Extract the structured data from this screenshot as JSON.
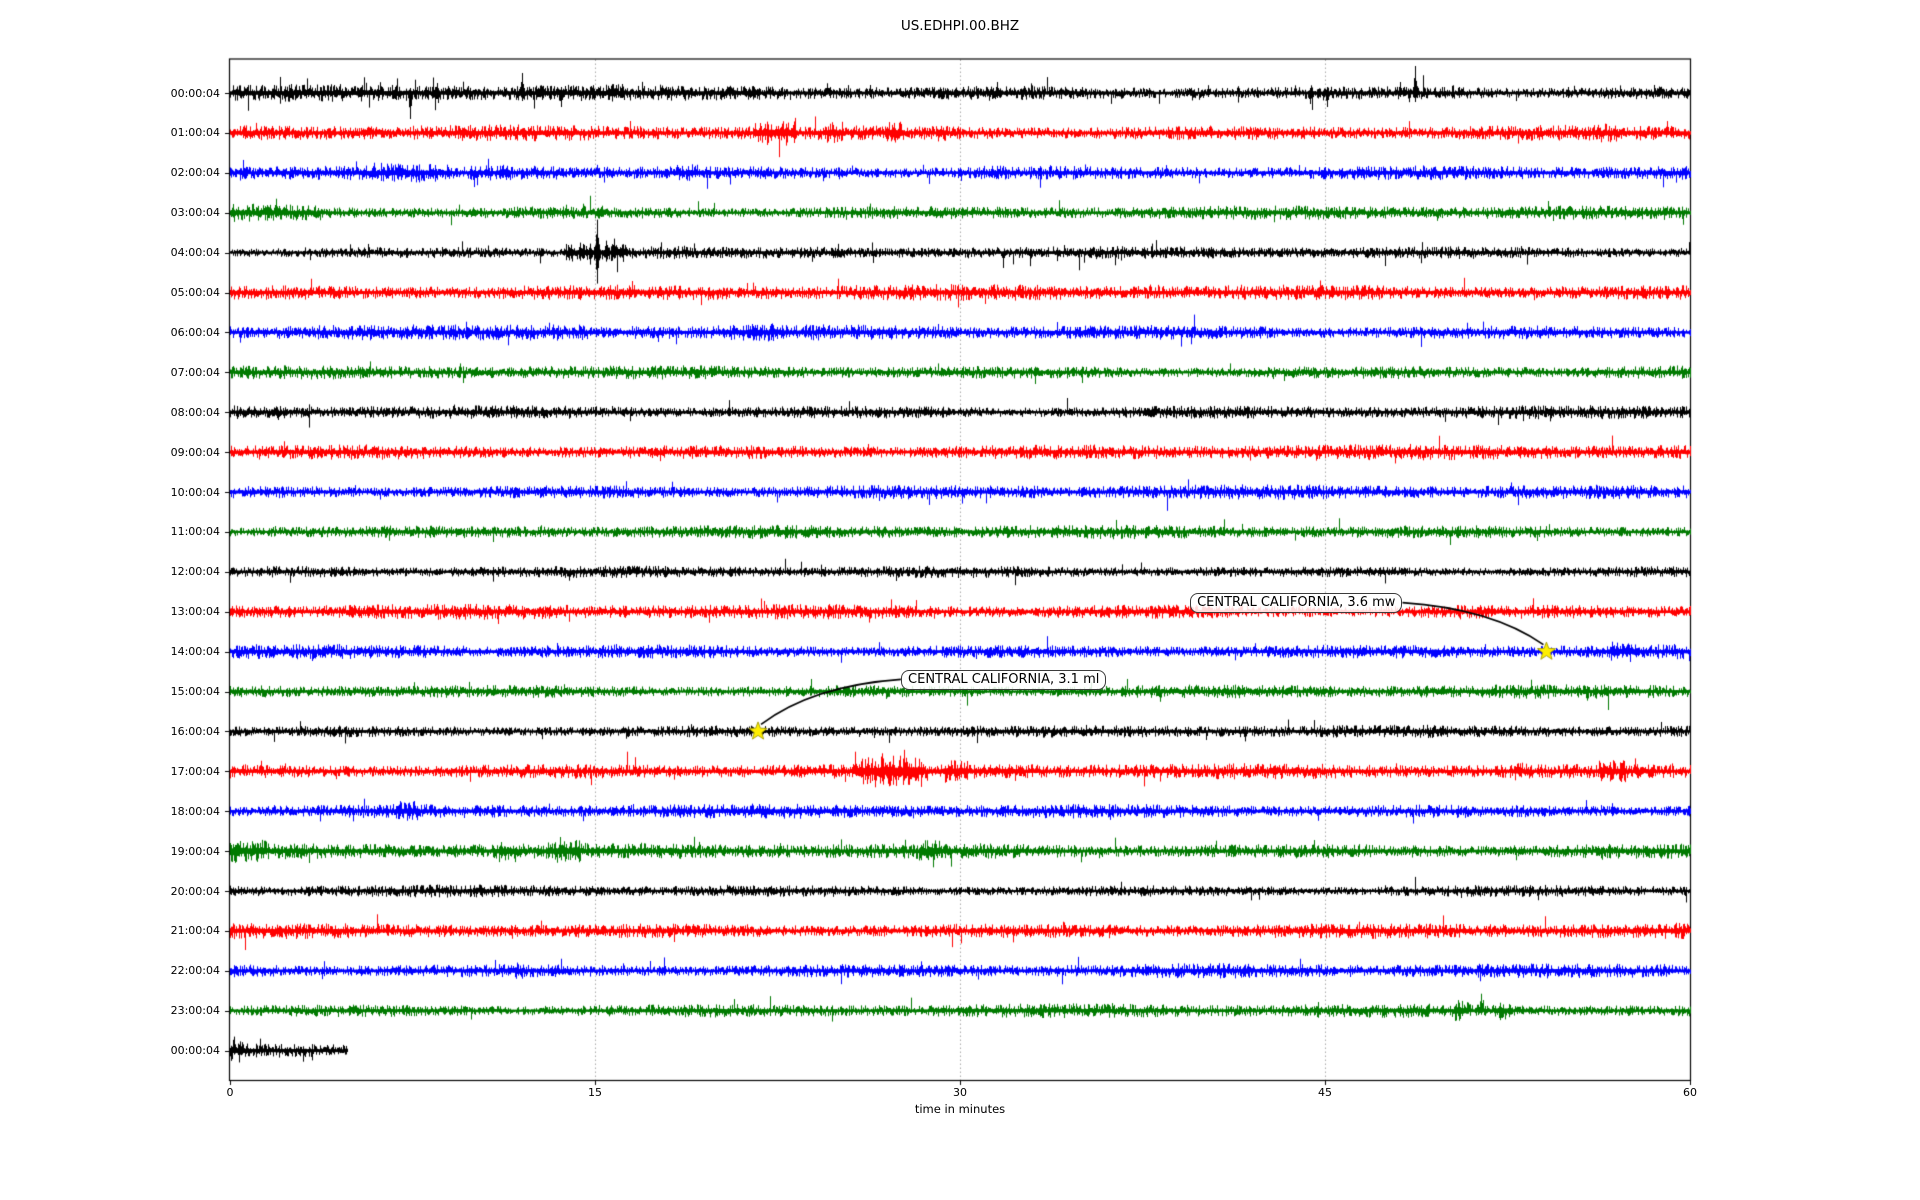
{
  "figure": {
    "title": "US.EDHPI.00.BHZ",
    "xlabel": "time in minutes"
  },
  "chart_data": {
    "type": "line",
    "subtype": "seismogram-dayplot",
    "title": "US.EDHPI.00.BHZ",
    "xlabel": "time in minutes",
    "xlim": [
      0,
      60
    ],
    "x_ticks": [
      0,
      15,
      30,
      45,
      60
    ],
    "grid": "vertical dotted gridlines at 15, 30, 45",
    "grid_color": "#aaaaaa",
    "colors": {
      "black": "#000000",
      "red": "#ff0000",
      "blue": "#0000ff",
      "green": "#007a00",
      "star_fill": "#ffee00",
      "star_edge": "#a09a00",
      "connector": "#000000"
    },
    "rows": [
      {
        "label": "00:00:04",
        "color": "black",
        "base": 4.0,
        "spiky": 0.035,
        "length_min": 60,
        "bands": [
          [
            0,
            16,
            1.2
          ]
        ],
        "spikes": [
          [
            1.8,
            8,
            4
          ],
          [
            2.5,
            9,
            5
          ],
          [
            5.4,
            6,
            7
          ],
          [
            6.1,
            7,
            5
          ],
          [
            6.8,
            6,
            6
          ],
          [
            7.4,
            5,
            26
          ],
          [
            8.5,
            10,
            6
          ],
          [
            9.3,
            6,
            5
          ],
          [
            12.0,
            20,
            8
          ],
          [
            13.6,
            6,
            14
          ],
          [
            16.1,
            9,
            5
          ],
          [
            18.0,
            6,
            5
          ],
          [
            21.5,
            7,
            5
          ],
          [
            26.3,
            8,
            4
          ],
          [
            31.5,
            11,
            5
          ],
          [
            35.0,
            6,
            4
          ],
          [
            40.2,
            7,
            4
          ],
          [
            44.4,
            5,
            11
          ],
          [
            45.1,
            6,
            14
          ],
          [
            48.1,
            11,
            4
          ],
          [
            48.7,
            27,
            9
          ],
          [
            50.5,
            6,
            4
          ],
          [
            55.0,
            6,
            5
          ]
        ]
      },
      {
        "label": "01:00:04",
        "color": "red",
        "base": 4.4,
        "spiky": 0.01,
        "length_min": 60,
        "bands": [
          [
            21.5,
            23.2,
            1.8
          ],
          [
            24.5,
            25.2,
            1.5
          ],
          [
            26.9,
            27.6,
            1.6
          ],
          [
            29.0,
            29.5,
            1.4
          ],
          [
            56.0,
            57.0,
            1.25
          ]
        ],
        "spikes": [
          [
            22.0,
            9,
            5
          ],
          [
            22.5,
            7,
            6
          ],
          [
            24.8,
            8,
            4
          ],
          [
            27.3,
            10,
            5
          ],
          [
            29.2,
            7,
            4
          ]
        ]
      },
      {
        "label": "02:00:04",
        "color": "blue",
        "base": 4.0,
        "spiky": 0.015,
        "length_min": 60,
        "bands": [
          [
            6.2,
            9.0,
            1.35
          ],
          [
            9.8,
            13.6,
            1.3
          ],
          [
            18.2,
            19.3,
            1.3
          ],
          [
            30.8,
            32.0,
            1.2
          ]
        ],
        "spikes": [
          [
            7.5,
            8,
            6
          ],
          [
            9.9,
            7,
            7
          ],
          [
            11.2,
            8,
            5
          ],
          [
            15.5,
            6,
            5
          ],
          [
            31.3,
            7,
            5
          ]
        ]
      },
      {
        "label": "03:00:04",
        "color": "green",
        "base": 3.8,
        "spiky": 0.015,
        "length_min": 60,
        "bands": [
          [
            0,
            3.5,
            1.35
          ]
        ],
        "spikes": [
          [
            1.9,
            14,
            5
          ],
          [
            2.3,
            8,
            5
          ],
          [
            3.2,
            7,
            4
          ],
          [
            13.8,
            8,
            5
          ],
          [
            14.5,
            9,
            5
          ],
          [
            15.3,
            7,
            4
          ],
          [
            27.8,
            6,
            4
          ]
        ]
      },
      {
        "label": "04:00:04",
        "color": "black",
        "base": 3.4,
        "spiky": 0.02,
        "length_min": 60,
        "bands": [
          [
            13.8,
            16.3,
            2.1
          ],
          [
            16.3,
            19.0,
            1.3
          ]
        ],
        "spikes": [
          [
            5.5,
            5,
            4
          ],
          [
            14.0,
            8,
            6
          ],
          [
            14.4,
            10,
            8
          ],
          [
            14.8,
            9,
            12
          ],
          [
            15.1,
            33,
            31
          ],
          [
            15.45,
            12,
            9
          ],
          [
            15.8,
            14,
            6
          ],
          [
            16.1,
            8,
            5
          ],
          [
            25.0,
            5,
            4
          ],
          [
            34.0,
            5,
            4
          ]
        ]
      },
      {
        "label": "05:00:04",
        "color": "red",
        "base": 4.4,
        "spiky": 0.008,
        "length_min": 60,
        "bands": [],
        "spikes": [
          [
            28.5,
            6,
            4
          ]
        ]
      },
      {
        "label": "06:00:04",
        "color": "blue",
        "base": 4.2,
        "spiky": 0.01,
        "length_min": 60,
        "bands": [
          [
            2,
            6,
            1.2
          ],
          [
            13,
            15,
            1.15
          ],
          [
            20,
            22.5,
            1.15
          ]
        ],
        "spikes": []
      },
      {
        "label": "07:00:04",
        "color": "green",
        "base": 3.8,
        "spiky": 0.008,
        "length_min": 60,
        "bands": [],
        "spikes": []
      },
      {
        "label": "08:00:04",
        "color": "black",
        "base": 3.8,
        "spiky": 0.012,
        "length_min": 60,
        "bands": [],
        "spikes": []
      },
      {
        "label": "09:00:04",
        "color": "red",
        "base": 4.3,
        "spiky": 0.008,
        "length_min": 60,
        "bands": [],
        "spikes": [
          [
            43.9,
            7,
            4
          ],
          [
            51.7,
            4,
            6
          ]
        ]
      },
      {
        "label": "10:00:04",
        "color": "blue",
        "base": 4.0,
        "spiky": 0.008,
        "length_min": 60,
        "bands": [],
        "spikes": []
      },
      {
        "label": "11:00:04",
        "color": "green",
        "base": 3.8,
        "spiky": 0.008,
        "length_min": 60,
        "bands": [],
        "spikes": []
      },
      {
        "label": "12:00:04",
        "color": "black",
        "base": 3.3,
        "spiky": 0.008,
        "length_min": 60,
        "bands": [],
        "spikes": []
      },
      {
        "label": "13:00:04",
        "color": "red",
        "base": 4.2,
        "spiky": 0.008,
        "length_min": 60,
        "bands": [],
        "spikes": []
      },
      {
        "label": "14:00:04",
        "color": "blue",
        "base": 4.0,
        "spiky": 0.008,
        "length_min": 60,
        "bands": [
          [
            56.6,
            57.9,
            1.5
          ]
        ],
        "spikes": [
          [
            57.0,
            9,
            7
          ],
          [
            57.4,
            7,
            5
          ]
        ]
      },
      {
        "label": "15:00:04",
        "color": "green",
        "base": 3.8,
        "spiky": 0.008,
        "length_min": 60,
        "bands": [],
        "spikes": []
      },
      {
        "label": "16:00:04",
        "color": "black",
        "base": 3.5,
        "spiky": 0.01,
        "length_min": 60,
        "bands": [],
        "spikes": [
          [
            41.7,
            4,
            10
          ]
        ]
      },
      {
        "label": "17:00:04",
        "color": "red",
        "base": 4.3,
        "spiky": 0.012,
        "length_min": 60,
        "bands": [
          [
            25.8,
            28.5,
            1.9
          ],
          [
            29.3,
            30.3,
            1.45
          ],
          [
            31.8,
            32.6,
            1.35
          ],
          [
            52.7,
            53.4,
            1.3
          ],
          [
            56.2,
            57.4,
            1.5
          ]
        ],
        "spikes": [
          [
            26.2,
            14,
            8
          ],
          [
            26.5,
            10,
            16
          ],
          [
            26.8,
            18,
            10
          ],
          [
            27.1,
            8,
            12
          ],
          [
            27.5,
            9,
            6
          ],
          [
            28.0,
            7,
            8
          ],
          [
            29.6,
            5,
            9
          ],
          [
            32.0,
            7,
            5
          ],
          [
            47.9,
            8,
            4
          ],
          [
            53.0,
            8,
            5
          ],
          [
            56.7,
            9,
            6
          ]
        ]
      },
      {
        "label": "18:00:04",
        "color": "blue",
        "base": 4.0,
        "spiky": 0.008,
        "length_min": 60,
        "bands": [
          [
            6.8,
            7.8,
            1.5
          ]
        ],
        "spikes": [
          [
            7.0,
            8,
            5
          ],
          [
            7.4,
            6,
            5
          ],
          [
            7.7,
            5,
            9
          ],
          [
            56.8,
            8,
            5
          ]
        ]
      },
      {
        "label": "19:00:04",
        "color": "green",
        "base": 4.4,
        "spiky": 0.015,
        "length_min": 60,
        "bands": [
          [
            0,
            1.5,
            1.5
          ],
          [
            10.8,
            11.5,
            1.3
          ],
          [
            13.0,
            14.4,
            1.45
          ],
          [
            28.3,
            29.2,
            1.4
          ]
        ],
        "spikes": [
          [
            0.3,
            8,
            5
          ],
          [
            13.8,
            7,
            5
          ],
          [
            22.6,
            8,
            4
          ],
          [
            28.7,
            5,
            9
          ],
          [
            29.0,
            7,
            5
          ]
        ]
      },
      {
        "label": "20:00:04",
        "color": "black",
        "base": 3.4,
        "spiky": 0.008,
        "length_min": 60,
        "bands": [],
        "spikes": []
      },
      {
        "label": "21:00:04",
        "color": "red",
        "base": 4.3,
        "spiky": 0.008,
        "length_min": 60,
        "bands": [],
        "spikes": [
          [
            11.7,
            6,
            4
          ]
        ]
      },
      {
        "label": "22:00:04",
        "color": "blue",
        "base": 4.0,
        "spiky": 0.008,
        "length_min": 60,
        "bands": [
          [
            11.3,
            12.1,
            1.25
          ]
        ],
        "spikes": []
      },
      {
        "label": "23:00:04",
        "color": "green",
        "base": 3.8,
        "spiky": 0.01,
        "length_min": 60,
        "bands": [
          [
            50.3,
            50.9,
            1.7
          ],
          [
            52.0,
            52.7,
            1.7
          ]
        ],
        "spikes": [
          [
            50.5,
            8,
            10
          ],
          [
            51.4,
            17,
            4
          ],
          [
            52.2,
            8,
            6
          ],
          [
            57.6,
            5,
            4
          ]
        ]
      },
      {
        "label": "00:00:04",
        "color": "black",
        "base": 4.6,
        "spiky": 0.02,
        "length_min": 4.8,
        "bands": [
          [
            0,
            0.6,
            1.4
          ]
        ],
        "spikes": [
          [
            0.15,
            14,
            4
          ],
          [
            0.35,
            6,
            8
          ]
        ]
      }
    ],
    "events": [
      {
        "label": "CENTRAL CALIFORNIA, 3.6 mw",
        "row": 14,
        "minute": 54.1,
        "box_side": "left"
      },
      {
        "label": "CENTRAL CALIFORNIA, 3.1 ml",
        "row": 16,
        "minute": 21.7,
        "box_side": "right"
      }
    ]
  }
}
